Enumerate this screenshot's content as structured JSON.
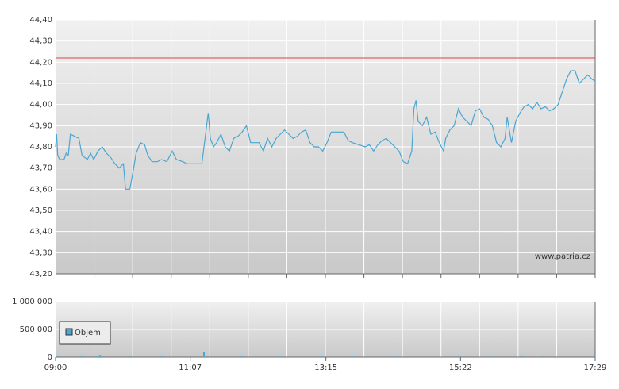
{
  "chart_data": [
    {
      "type": "line",
      "xlim": [
        "09:00",
        "17:29"
      ],
      "ylim": [
        43.2,
        44.4
      ],
      "yticks": [
        {
          "value": 43.2,
          "label": "43,20"
        },
        {
          "value": 43.3,
          "label": "43,30"
        },
        {
          "value": 43.4,
          "label": "43,40"
        },
        {
          "value": 43.5,
          "label": "43,50"
        },
        {
          "value": 43.6,
          "label": "43,60"
        },
        {
          "value": 43.7,
          "label": "43,70"
        },
        {
          "value": 43.8,
          "label": "43,80"
        },
        {
          "value": 43.9,
          "label": "43,90"
        },
        {
          "value": 44.0,
          "label": "44,00"
        },
        {
          "value": 44.1,
          "label": "44,10"
        },
        {
          "value": 44.2,
          "label": "44,20"
        },
        {
          "value": 44.3,
          "label": "44,30"
        },
        {
          "value": 44.4,
          "label": "44,40"
        }
      ],
      "grid": true,
      "reference_line": {
        "value": 44.22,
        "color": "#d24a4a"
      },
      "annotation": "www.patria.cz",
      "x": [
        "09:00",
        "09:01",
        "09:02",
        "09:04",
        "09:08",
        "09:10",
        "09:12",
        "09:14",
        "09:18",
        "09:22",
        "09:25",
        "09:30",
        "09:33",
        "09:36",
        "09:40",
        "09:44",
        "09:48",
        "09:52",
        "09:56",
        "10:00",
        "10:04",
        "10:06",
        "10:10",
        "10:13",
        "10:16",
        "10:20",
        "10:24",
        "10:27",
        "10:31",
        "10:36",
        "10:40",
        "10:45",
        "10:50",
        "10:54",
        "11:00",
        "11:04",
        "11:10",
        "11:18",
        "11:22",
        "11:24",
        "11:26",
        "11:29",
        "11:32",
        "11:36",
        "11:40",
        "11:44",
        "11:48",
        "11:52",
        "11:56",
        "12:00",
        "12:04",
        "12:08",
        "12:12",
        "12:16",
        "12:20",
        "12:24",
        "12:28",
        "12:32",
        "12:36",
        "12:40",
        "12:44",
        "12:48",
        "12:52",
        "12:56",
        "13:00",
        "13:04",
        "13:08",
        "13:12",
        "13:16",
        "13:20",
        "13:26",
        "13:32",
        "13:36",
        "13:40",
        "13:46",
        "13:52",
        "13:56",
        "14:00",
        "14:04",
        "14:08",
        "14:12",
        "14:16",
        "14:20",
        "14:24",
        "14:28",
        "14:32",
        "14:36",
        "14:38",
        "14:40",
        "14:42",
        "14:46",
        "14:50",
        "14:54",
        "14:58",
        "15:02",
        "15:06",
        "15:08",
        "15:12",
        "15:16",
        "15:20",
        "15:24",
        "15:28",
        "15:32",
        "15:36",
        "15:40",
        "15:44",
        "15:48",
        "15:52",
        "15:56",
        "16:00",
        "16:04",
        "16:06",
        "16:10",
        "16:14",
        "16:18",
        "16:22",
        "16:26",
        "16:30",
        "16:34",
        "16:38",
        "16:42",
        "16:46",
        "16:50",
        "16:54",
        "16:58",
        "17:02",
        "17:06",
        "17:10",
        "17:14",
        "17:18",
        "17:22",
        "17:26",
        "17:29"
      ],
      "series": [
        {
          "color": "#4aa6d2",
          "values": [
            43.8,
            43.86,
            43.76,
            43.74,
            43.74,
            43.77,
            43.76,
            43.86,
            43.85,
            43.84,
            43.76,
            43.74,
            43.77,
            43.74,
            43.78,
            43.8,
            43.77,
            43.75,
            43.72,
            43.7,
            43.72,
            43.6,
            43.6,
            43.68,
            43.77,
            43.82,
            43.81,
            43.76,
            43.73,
            43.73,
            43.74,
            43.73,
            43.78,
            43.74,
            43.73,
            43.72,
            43.72,
            43.72,
            43.88,
            43.96,
            43.84,
            43.8,
            43.82,
            43.86,
            43.8,
            43.78,
            43.84,
            43.85,
            43.87,
            43.9,
            43.82,
            43.82,
            43.82,
            43.78,
            43.84,
            43.8,
            43.84,
            43.86,
            43.88,
            43.86,
            43.84,
            43.85,
            43.87,
            43.88,
            43.82,
            43.8,
            43.8,
            43.78,
            43.82,
            43.87,
            43.87,
            43.87,
            43.83,
            43.82,
            43.81,
            43.8,
            43.81,
            43.78,
            43.81,
            43.83,
            43.84,
            43.82,
            43.8,
            43.78,
            43.73,
            43.72,
            43.78,
            43.98,
            44.02,
            43.92,
            43.9,
            43.94,
            43.86,
            43.87,
            43.82,
            43.78,
            43.84,
            43.88,
            43.9,
            43.98,
            43.94,
            43.92,
            43.9,
            43.97,
            43.98,
            43.94,
            43.93,
            43.9,
            43.82,
            43.8,
            43.84,
            43.94,
            43.82,
            43.92,
            43.96,
            43.99,
            44.0,
            43.98,
            44.01,
            43.98,
            43.99,
            43.97,
            43.98,
            44.0,
            44.06,
            44.12,
            44.16,
            44.16,
            44.1,
            44.12,
            44.14,
            44.12,
            44.11
          ]
        }
      ]
    },
    {
      "type": "bar",
      "xlim": [
        "09:00",
        "17:29"
      ],
      "ylim": [
        0,
        1000000
      ],
      "yticks": [
        {
          "value": 0,
          "label": "0"
        },
        {
          "value": 500000,
          "label": "500 000"
        },
        {
          "value": 1000000,
          "label": "1 000 000"
        }
      ],
      "xticks": [
        "09:00",
        "11:07",
        "13:15",
        "15:22",
        "17:29"
      ],
      "grid": true,
      "legend": "upper left",
      "x": [
        "09:02",
        "09:25",
        "09:38",
        "09:42",
        "10:10",
        "10:40",
        "11:20",
        "11:55",
        "12:30",
        "13:10",
        "13:40",
        "14:20",
        "14:45",
        "15:20",
        "15:50",
        "16:20",
        "16:40",
        "17:10",
        "17:28"
      ],
      "series": [
        {
          "name": "Objem",
          "color": "#4aa6d2",
          "values": [
            25000,
            30000,
            20000,
            40000,
            15000,
            20000,
            90000,
            20000,
            25000,
            15000,
            20000,
            20000,
            30000,
            25000,
            20000,
            30000,
            25000,
            20000,
            30000
          ]
        }
      ]
    }
  ]
}
